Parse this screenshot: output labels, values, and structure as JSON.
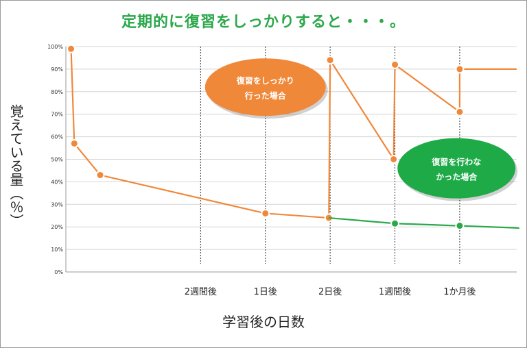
{
  "title": "定期的に復習をしっかりすると・・・。",
  "chart_data": {
    "type": "line",
    "title": "定期的に復習をしっかりすると・・・。",
    "ylabel": "覚えている量（％）",
    "xlabel": "学習後の日数",
    "ylim": [
      0,
      100
    ],
    "y_ticks": [
      "0%",
      "10%",
      "20%",
      "30%",
      "40%",
      "50%",
      "60%",
      "70%",
      "80%",
      "90%",
      "100%"
    ],
    "x_markers": [
      "2週間後",
      "1日後",
      "2日後",
      "1週間後",
      "1か月後"
    ],
    "x_marker_positions": [
      1,
      2,
      3,
      4,
      5
    ],
    "xlim": [
      -1.08,
      5.88
    ],
    "grid": true,
    "series": [
      {
        "name": "復習をしっかり行った場合",
        "color": "#f0883a",
        "points": [
          {
            "x": -1.0,
            "y": 99
          },
          {
            "x": -0.95,
            "y": 57
          },
          {
            "x": -0.55,
            "y": 43
          },
          {
            "x": 2.0,
            "y": 26
          },
          {
            "x": 2.98,
            "y": 24
          },
          {
            "x": 3.0,
            "y": 94
          },
          {
            "x": 3.98,
            "y": 50
          },
          {
            "x": 4.0,
            "y": 92
          },
          {
            "x": 5.0,
            "y": 71
          },
          {
            "x": 5.0,
            "y": 90
          },
          {
            "x": 5.88,
            "y": 90
          }
        ],
        "markers": [
          0,
          1,
          2,
          3,
          4,
          5,
          6,
          7,
          8,
          9
        ]
      },
      {
        "name": "復習を行わなかった場合",
        "color": "#2aa84a",
        "points": [
          {
            "x": 2.98,
            "y": 24
          },
          {
            "x": 4.0,
            "y": 21.5
          },
          {
            "x": 5.0,
            "y": 20.5
          },
          {
            "x": 5.92,
            "y": 19.5
          }
        ],
        "markers": [
          1,
          2
        ]
      }
    ],
    "annotations": [
      {
        "text_lines": [
          "復習をしっかり",
          "行った場合"
        ],
        "color": "#f0883a",
        "near_x": 2.0,
        "near_y": 82
      },
      {
        "text_lines": [
          "復習を行わな",
          "かった場合"
        ],
        "color": "#1faa48",
        "near_x": 4.95,
        "near_y": 46
      }
    ]
  }
}
